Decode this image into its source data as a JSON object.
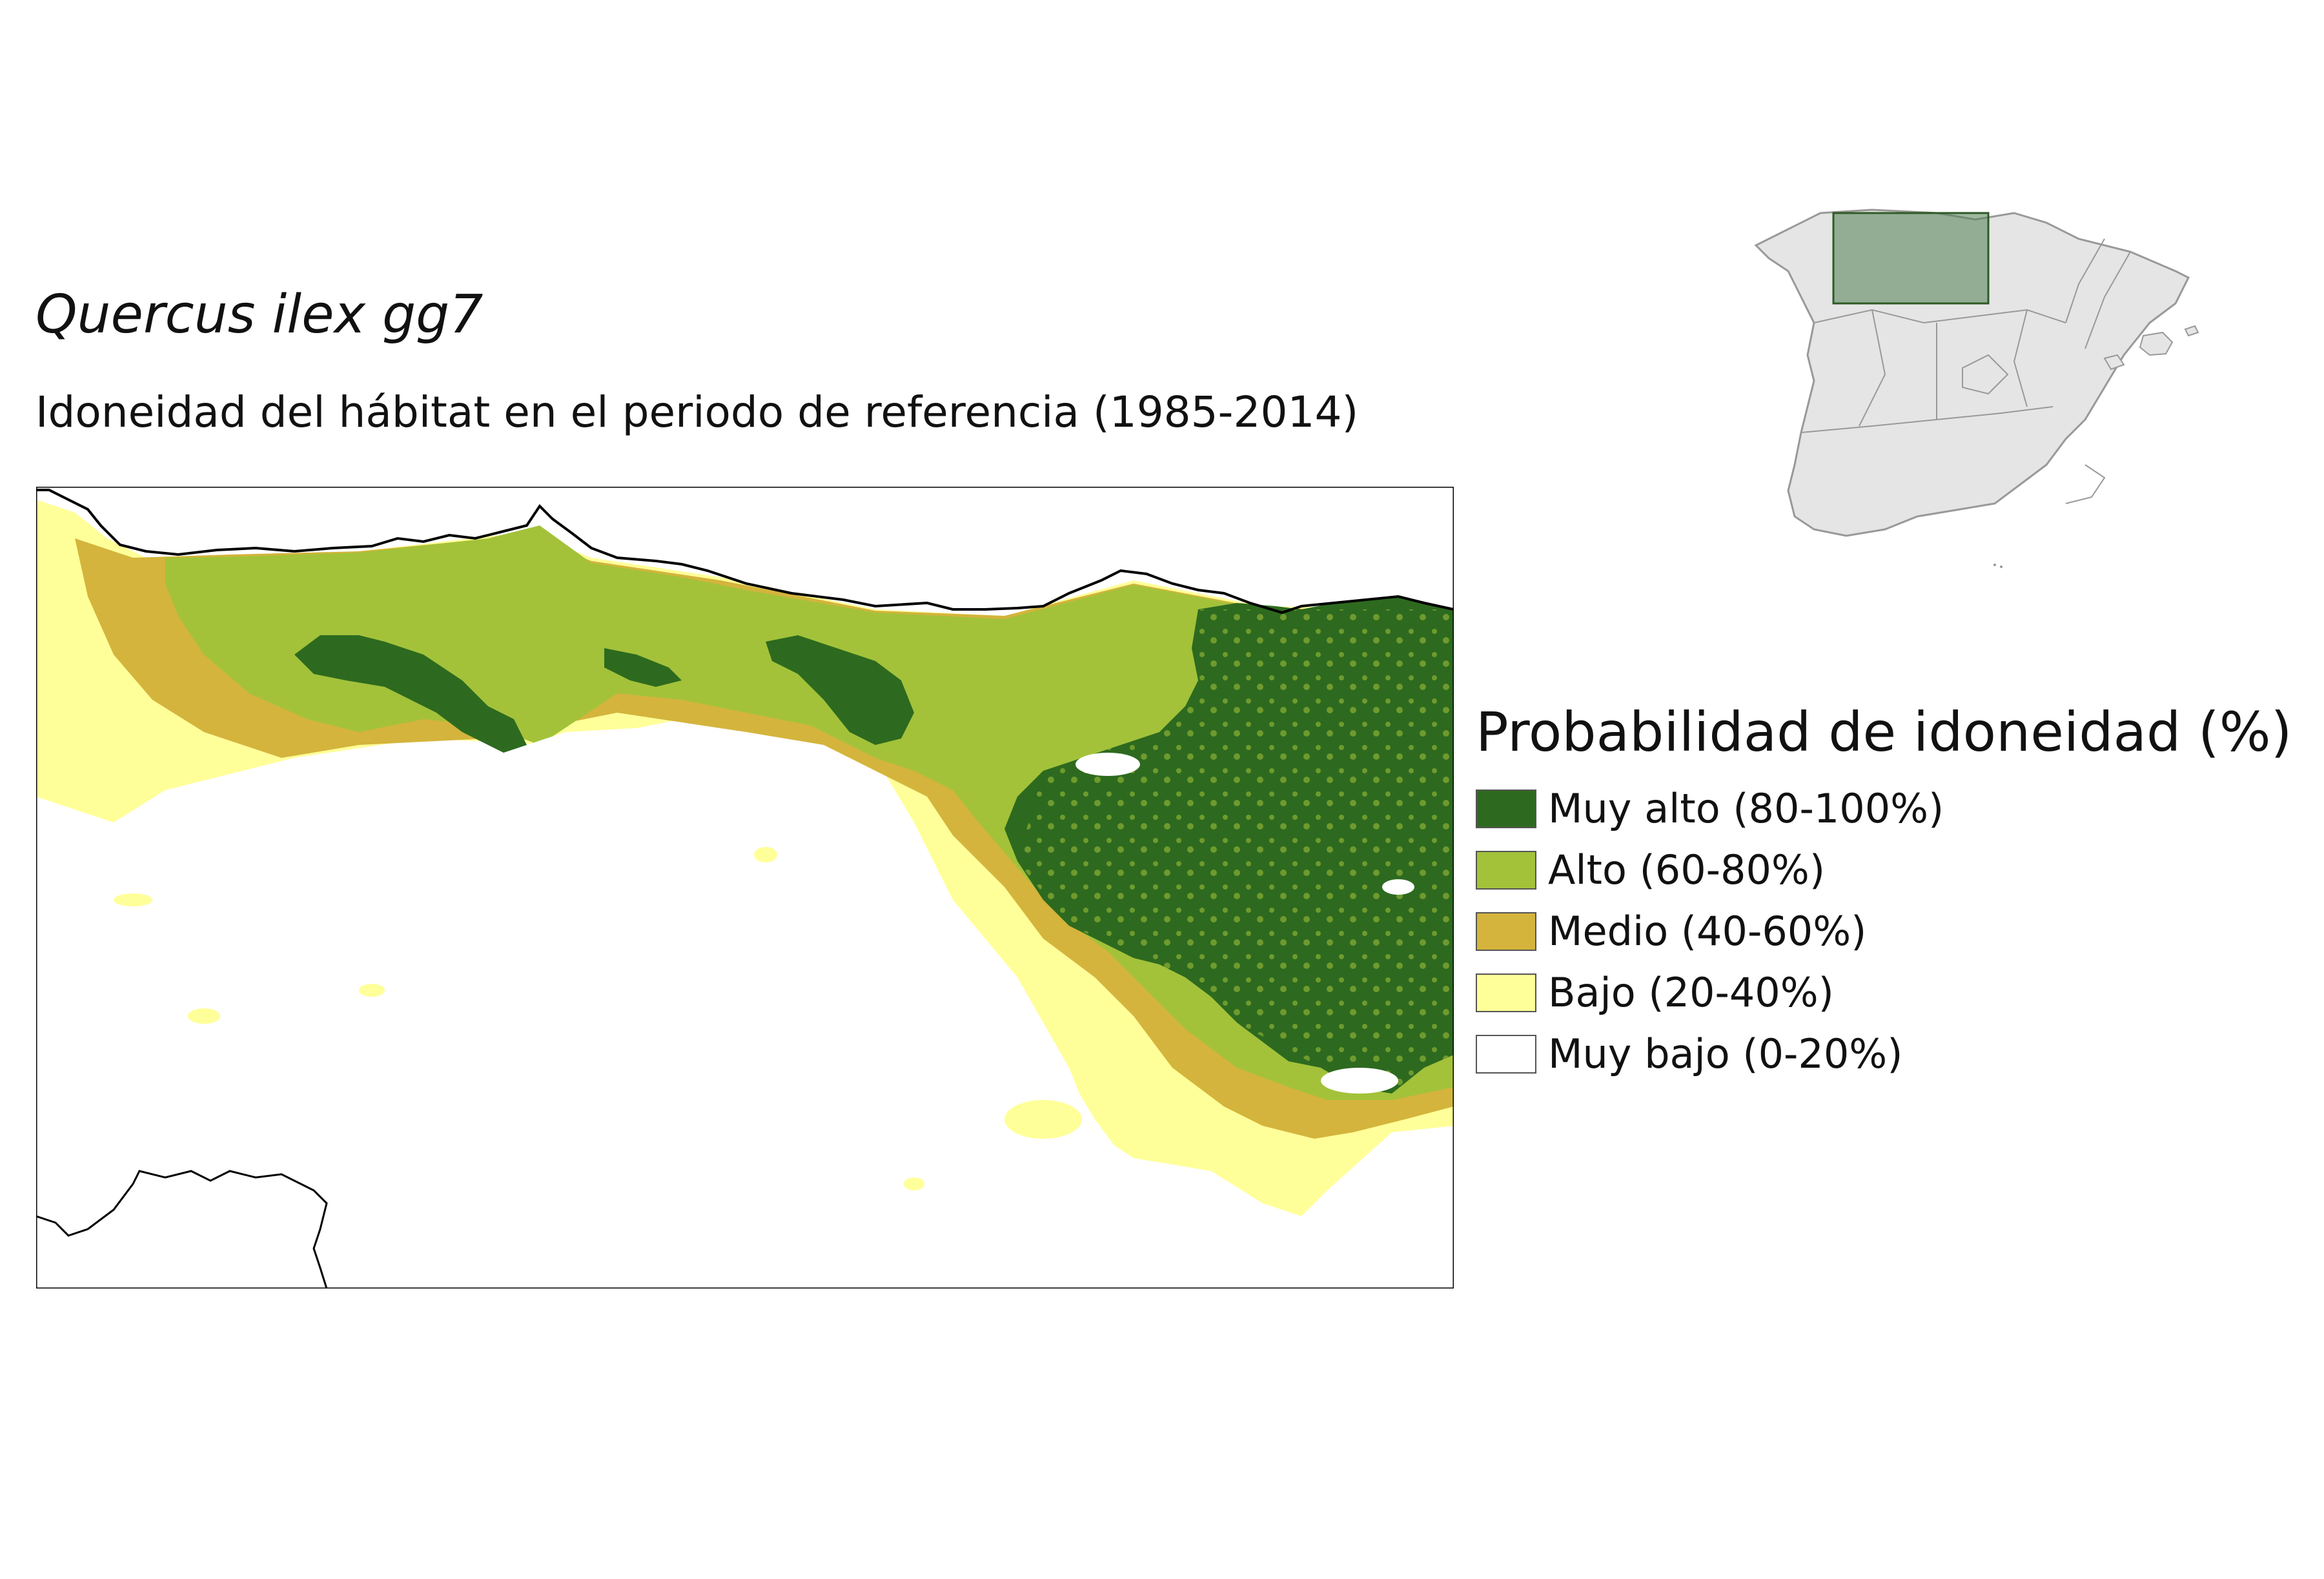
{
  "title": "Quercus ilex gg7",
  "subtitle": "Idoneidad del hábitat en el periodo de referencia (1985-2014)",
  "legend": {
    "title": "Probabilidad de idoneidad (%)",
    "items": [
      {
        "label": "Muy alto (80-100%)",
        "color": "#2d6a1f"
      },
      {
        "label": "Alto (60-80%)",
        "color": "#a3c23a"
      },
      {
        "label": "Medio (40-60%)",
        "color": "#d4b43c"
      },
      {
        "label": "Bajo (20-40%)",
        "color": "#ffff99"
      },
      {
        "label": "Muy bajo (0-20%)",
        "color": "#ffffff"
      }
    ]
  },
  "inset": {
    "region_fill": "#e5e5e5",
    "highlight_color": "#4f7f52"
  }
}
